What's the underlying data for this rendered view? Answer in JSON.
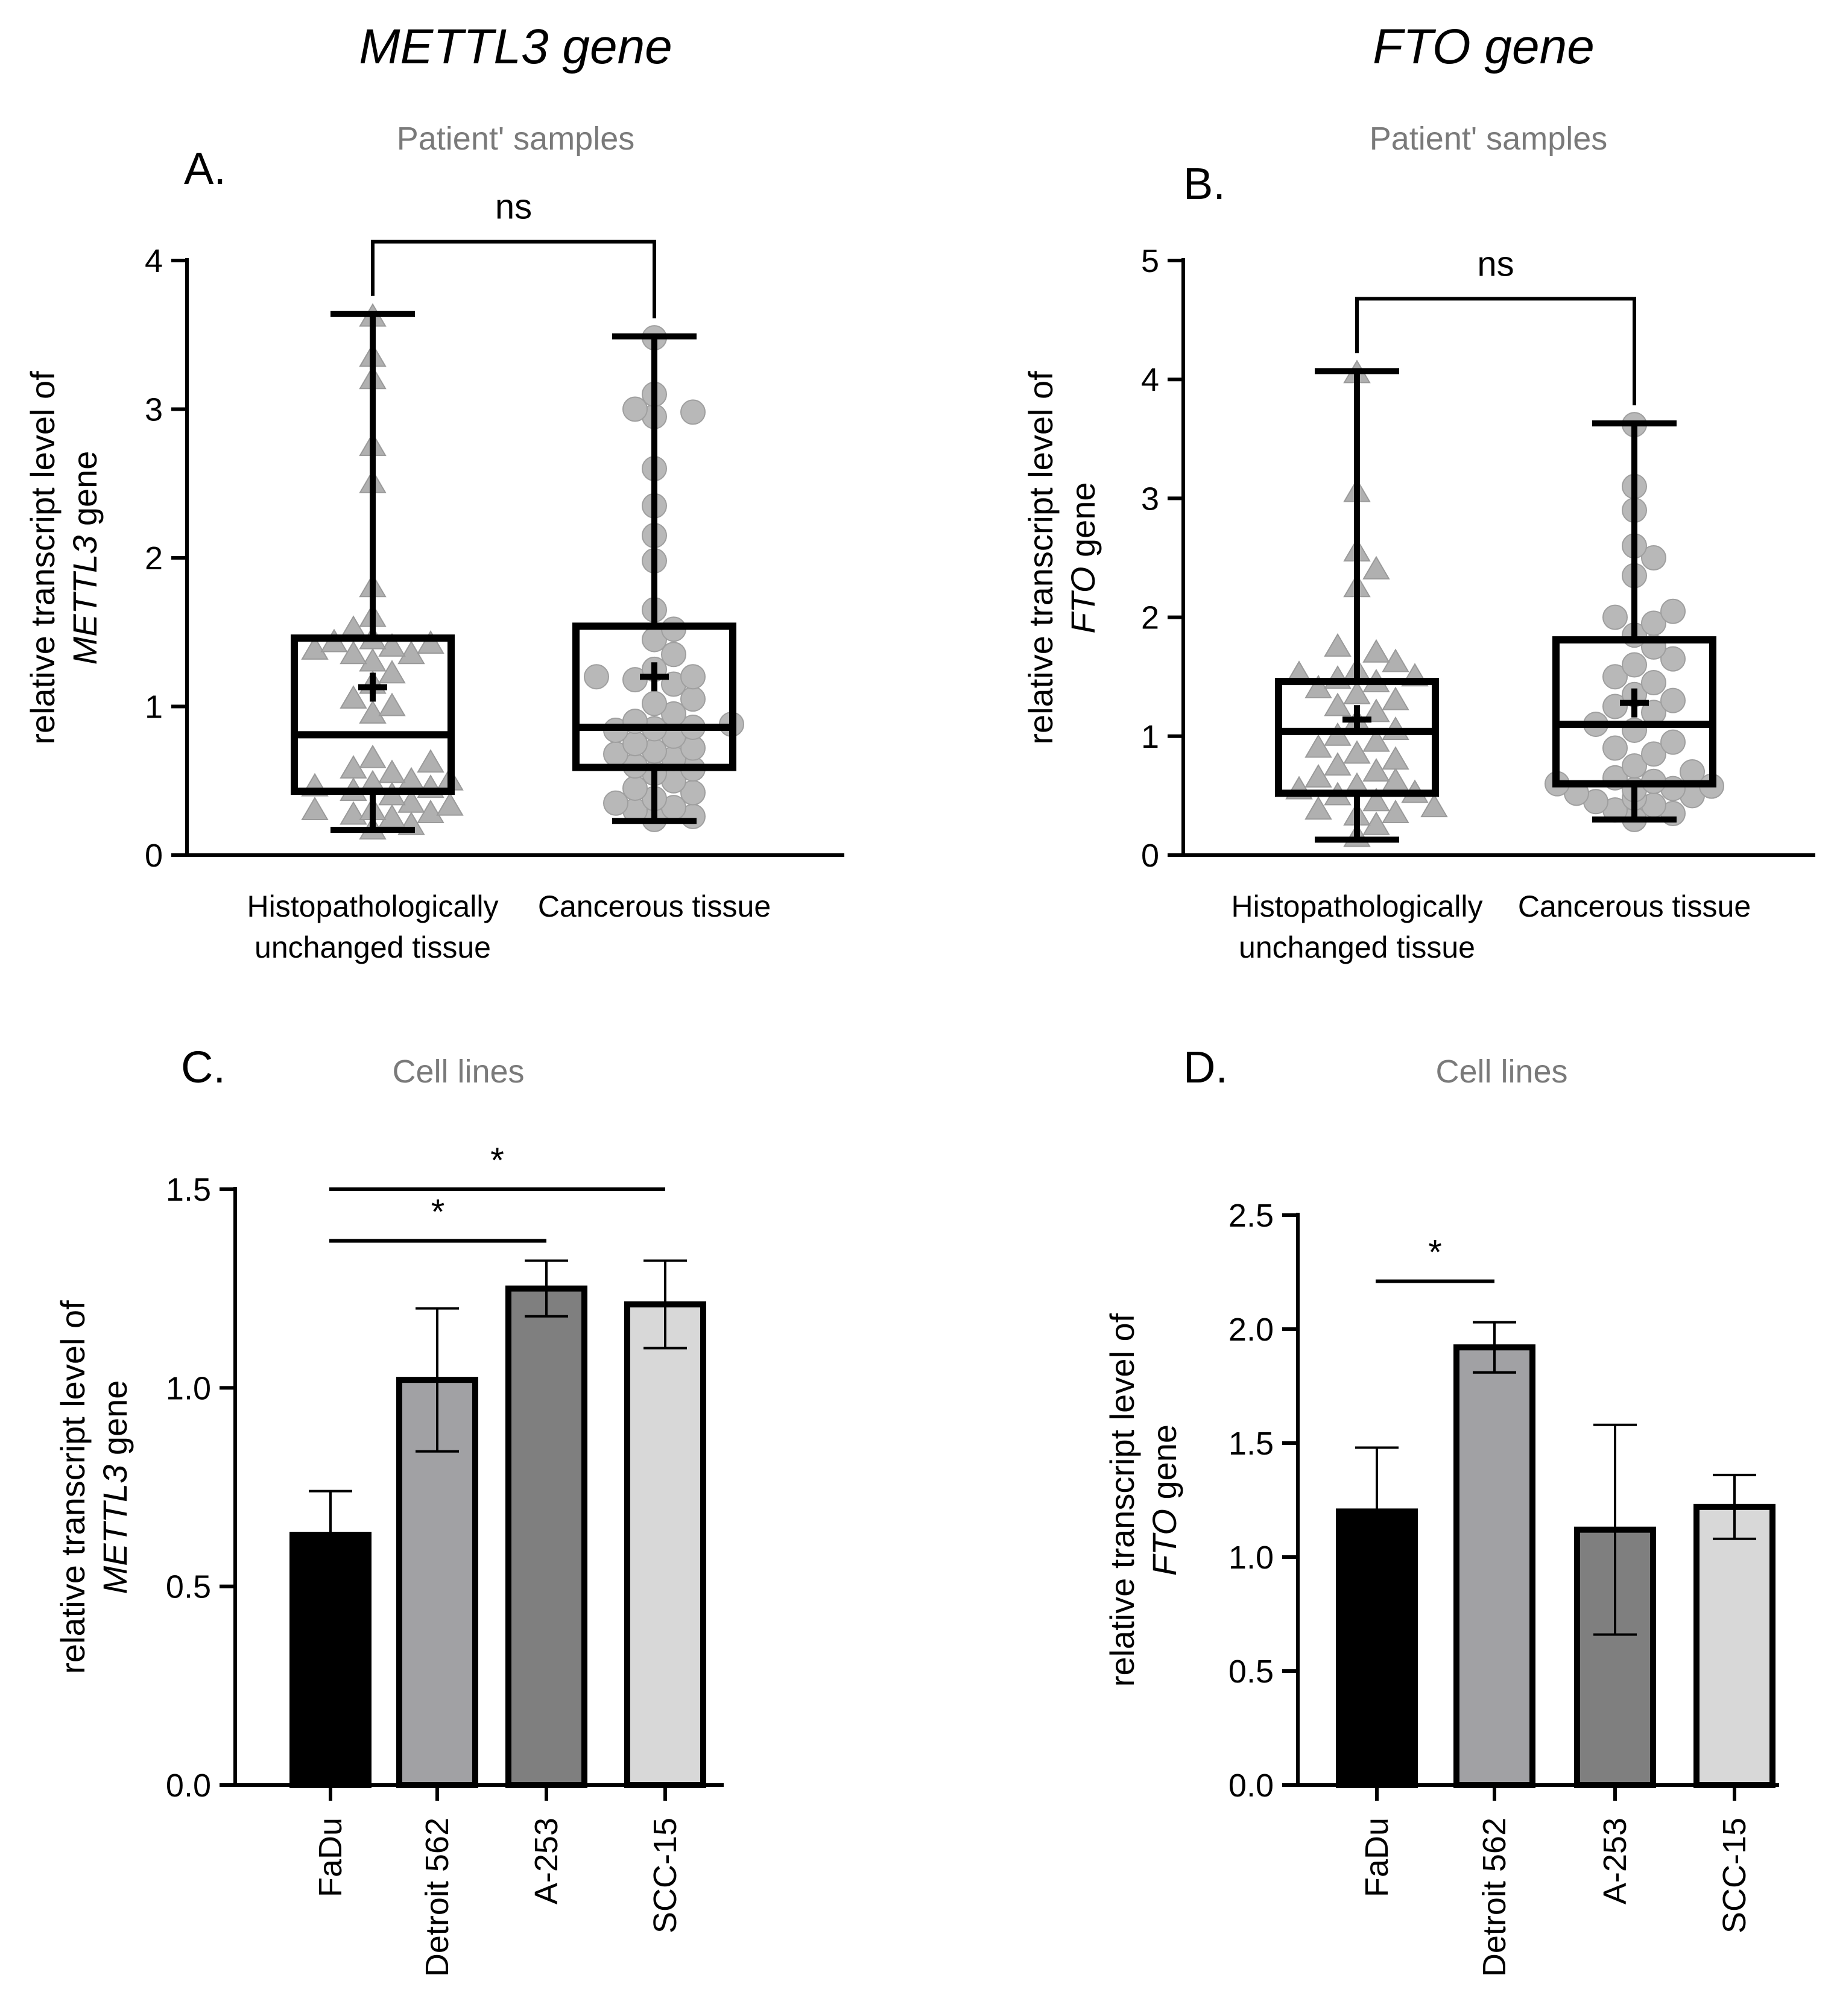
{
  "figure": {
    "col_titles": [
      "METTL3 gene",
      "FTO gene"
    ]
  },
  "chart_data": [
    {
      "panel": "A.",
      "type": "box",
      "subtitle": "Patient' samples",
      "ylabel_line1": "relative transcript level of",
      "ylabel_gene": "METTL3",
      "ylabel_suffix": " gene",
      "ylim": [
        0,
        4
      ],
      "yticks": [
        "0",
        "1",
        "2",
        "3",
        "4"
      ],
      "categories": [
        {
          "lines": [
            "Histopathologically",
            "unchanged tissue"
          ]
        },
        {
          "lines": [
            "Cancerous tissue"
          ]
        }
      ],
      "boxes": [
        {
          "min": 0.17,
          "q1": 0.43,
          "median": 0.81,
          "q3": 1.46,
          "max": 3.64,
          "mean": 1.13,
          "marker": "triangle",
          "points": [
            3.62,
            3.35,
            3.2,
            2.75,
            2.5,
            1.8,
            1.6,
            1.52,
            1.45,
            1.43,
            1.42,
            1.4,
            1.38,
            1.35,
            1.35,
            1.3,
            1.22,
            1.15,
            1.05,
            1.0,
            0.95,
            0.65,
            0.62,
            0.58,
            0.55,
            0.5,
            0.5,
            0.48,
            0.46,
            0.45,
            0.43,
            0.4,
            0.35,
            0.33,
            0.3,
            0.3,
            0.28,
            0.27,
            0.25,
            0.2,
            0.17
          ]
        },
        {
          "min": 0.23,
          "q1": 0.59,
          "median": 0.86,
          "q3": 1.54,
          "max": 3.49,
          "mean": 1.2,
          "marker": "circle",
          "points": [
            3.48,
            3.1,
            3.0,
            2.98,
            2.95,
            2.6,
            2.35,
            2.15,
            1.98,
            1.65,
            1.52,
            1.45,
            1.35,
            1.25,
            1.2,
            1.2,
            1.18,
            1.15,
            1.05,
            1.02,
            0.95,
            0.9,
            0.88,
            0.86,
            0.85,
            0.84,
            0.8,
            0.75,
            0.72,
            0.7,
            0.68,
            0.65,
            0.6,
            0.58,
            0.55,
            0.5,
            0.45,
            0.42,
            0.38,
            0.35,
            0.32,
            0.3,
            0.26,
            0.24
          ]
        }
      ],
      "significance": [
        {
          "from": 0,
          "to": 1,
          "label": "ns"
        }
      ]
    },
    {
      "panel": "B.",
      "type": "box",
      "subtitle": "Patient' samples",
      "ylabel_line1": "relative transcript level of",
      "ylabel_gene": "FTO",
      "ylabel_suffix": " gene",
      "ylim": [
        0,
        5
      ],
      "yticks": [
        "0",
        "1",
        "2",
        "3",
        "4",
        "5"
      ],
      "categories": [
        {
          "lines": [
            "Histopathologically",
            "unchanged tissue"
          ]
        },
        {
          "lines": [
            "Cancerous tissue"
          ]
        }
      ],
      "boxes": [
        {
          "min": 0.13,
          "q1": 0.52,
          "median": 1.04,
          "q3": 1.46,
          "max": 4.07,
          "mean": 1.14,
          "marker": "triangle",
          "points": [
            4.05,
            3.05,
            2.55,
            2.4,
            2.25,
            1.75,
            1.7,
            1.62,
            1.55,
            1.52,
            1.5,
            1.48,
            1.45,
            1.4,
            1.35,
            1.3,
            1.25,
            1.2,
            1.12,
            1.05,
            1.0,
            0.95,
            0.9,
            0.85,
            0.8,
            0.75,
            0.7,
            0.65,
            0.62,
            0.58,
            0.55,
            0.52,
            0.5,
            0.45,
            0.4,
            0.38,
            0.35,
            0.33,
            0.25,
            0.15
          ]
        },
        {
          "min": 0.3,
          "q1": 0.6,
          "median": 1.1,
          "q3": 1.81,
          "max": 3.63,
          "mean": 1.28,
          "marker": "circle",
          "points": [
            3.62,
            3.1,
            2.9,
            2.6,
            2.5,
            2.35,
            2.05,
            2.0,
            1.95,
            1.85,
            1.75,
            1.65,
            1.6,
            1.5,
            1.45,
            1.35,
            1.3,
            1.25,
            1.2,
            1.1,
            1.05,
            0.95,
            0.9,
            0.85,
            0.75,
            0.7,
            0.65,
            0.62,
            0.6,
            0.58,
            0.56,
            0.55,
            0.52,
            0.5,
            0.48,
            0.45,
            0.42,
            0.38,
            0.35,
            0.3
          ]
        }
      ],
      "significance": [
        {
          "from": 0,
          "to": 1,
          "label": "ns"
        }
      ]
    },
    {
      "panel": "C.",
      "type": "bar",
      "subtitle": "Cell lines",
      "ylabel_line1": "relative transcript level of",
      "ylabel_gene": "METTL3",
      "ylabel_suffix": " gene",
      "ylim": [
        0,
        1.5
      ],
      "yticks": [
        "0.0",
        "0.5",
        "1.0",
        "1.5"
      ],
      "categories": [
        "FaDu",
        "Detroit 562",
        "A-253",
        "SCC-15"
      ],
      "values": [
        0.63,
        1.02,
        1.25,
        1.21
      ],
      "errors": [
        0.11,
        0.18,
        0.07,
        0.11
      ],
      "colors": [
        "#000000",
        "#a1a1a4",
        "#7f7f7f",
        "#d8d8d8"
      ],
      "significance": [
        {
          "from": 0,
          "to": 3,
          "label": "*",
          "y": 1.5
        },
        {
          "from": 0,
          "to": 2,
          "label": "*",
          "y": 1.37
        }
      ]
    },
    {
      "panel": "D.",
      "type": "bar",
      "subtitle": "Cell lines",
      "ylabel_line1": "relative transcript level of",
      "ylabel_gene": "FTO",
      "ylabel_suffix": " gene",
      "ylim": [
        0,
        2.5
      ],
      "yticks": [
        "0.0",
        "0.5",
        "1.0",
        "1.5",
        "2.0",
        "2.5"
      ],
      "categories": [
        "FaDu",
        "Detroit 562",
        "A-253",
        "SCC-15"
      ],
      "values": [
        1.2,
        1.92,
        1.12,
        1.22
      ],
      "errors": [
        0.28,
        0.11,
        0.46,
        0.14
      ],
      "colors": [
        "#000000",
        "#a1a1a4",
        "#7f7f7f",
        "#d8d8d8"
      ],
      "significance": [
        {
          "from": 0,
          "to": 1,
          "label": "*",
          "y": 2.21
        }
      ]
    }
  ]
}
